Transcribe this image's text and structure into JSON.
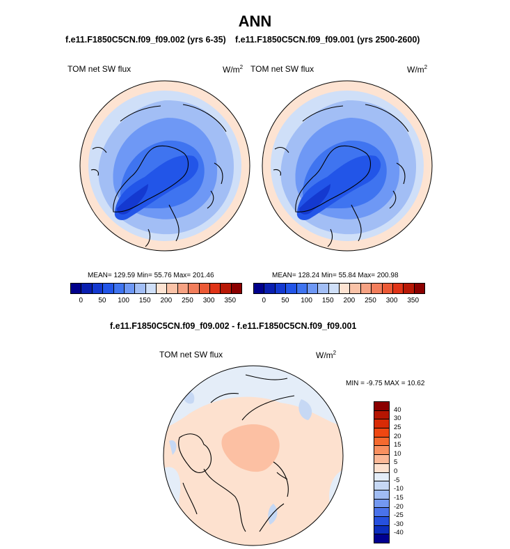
{
  "figure": {
    "title": "ANN",
    "panel1_title": "f.e11.F1850C5CN.f09_f09.002 (yrs 6-35)",
    "panel2_title": "f.e11.F1850C5CN.f09_f09.001 (yrs 2500-2600)",
    "diff_title": "f.e11.F1850C5CN.f09_f09.002 - f.e11.F1850C5CN.f09_f09.001"
  },
  "panels": [
    {
      "variable": "TOM net SW flux",
      "units_base": "W/m",
      "units_exp": "2",
      "stats": "MEAN= 129.59  Min=  55.76  Max= 201.46"
    },
    {
      "variable": "TOM net SW flux",
      "units_base": "W/m",
      "units_exp": "2",
      "stats": "MEAN= 128.24  Min=  55.84  Max= 200.98"
    },
    {
      "variable": "TOM net SW flux",
      "units_base": "W/m",
      "units_exp": "2",
      "stats": "MIN =  -9.75 MAX =  10.62"
    }
  ],
  "colorbar_abs": {
    "colors": [
      "#00008b",
      "#0a1fb0",
      "#1439d0",
      "#2255e8",
      "#3f74f0",
      "#6e98f5",
      "#a2bef5",
      "#cfdff8",
      "#fde3d2",
      "#fac3a8",
      "#f6a283",
      "#f27e5c",
      "#ec5a36",
      "#e03418",
      "#b81806",
      "#8b0000"
    ],
    "ticks": [
      "0",
      "50",
      "100",
      "150",
      "200",
      "250",
      "300",
      "350"
    ]
  },
  "colorbar_diff": {
    "colors": [
      "#8b0000",
      "#b51502",
      "#d82b06",
      "#ee4712",
      "#f56a2f",
      "#f89060",
      "#fbb897",
      "#fde1cf",
      "#e4edf8",
      "#c6d8f4",
      "#a0bcf3",
      "#7398f0",
      "#4a72ea",
      "#2650de",
      "#0c2ebe",
      "#000090"
    ],
    "ticks": [
      "40",
      "30",
      "25",
      "20",
      "15",
      "10",
      "5",
      "0",
      "-5",
      "-10",
      "-15",
      "-20",
      "-25",
      "-30",
      "-40"
    ]
  }
}
